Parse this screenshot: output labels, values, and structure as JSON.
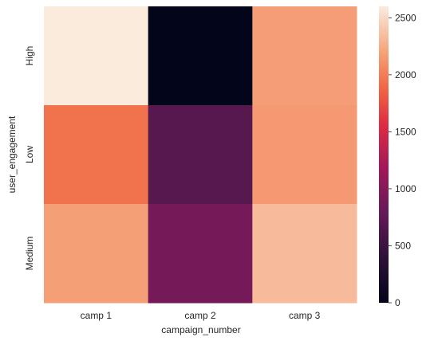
{
  "chart_data": {
    "type": "heatmap",
    "title": "",
    "xlabel": "campaign_number",
    "ylabel": "user_engagement",
    "x_categories": [
      "camp 1",
      "camp 2",
      "camp 3"
    ],
    "y_categories": [
      "High",
      "Low",
      "Medium"
    ],
    "values": [
      [
        2600,
        0,
        2170
      ],
      [
        1950,
        690,
        2150
      ],
      [
        2180,
        900,
        2330
      ]
    ],
    "colorbar": {
      "range": [
        0,
        2600
      ],
      "ticks": [
        0,
        500,
        1000,
        1500,
        2000,
        2500
      ],
      "colormap": "rocket"
    }
  }
}
